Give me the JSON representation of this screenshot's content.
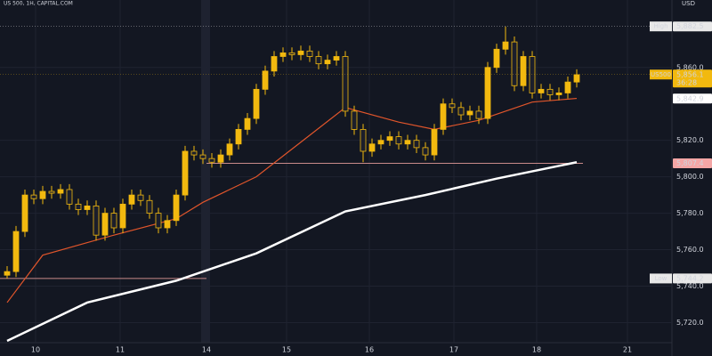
{
  "chart_data": {
    "type": "candlestick",
    "title": "US 500, 1H, CAPITAL.COM",
    "currency": "USD",
    "x": [
      0,
      1,
      2,
      3,
      4,
      5,
      6,
      7,
      8,
      9,
      10,
      11,
      12,
      13,
      14,
      15,
      16,
      17,
      18,
      19,
      20,
      21,
      22,
      23,
      24,
      25,
      26,
      27,
      28,
      29,
      30,
      31,
      32,
      33,
      34,
      35,
      36,
      37,
      38,
      39,
      40,
      41,
      42,
      43,
      44,
      45,
      46,
      47,
      48,
      49,
      50,
      51,
      52,
      53,
      54,
      55,
      56,
      57,
      58,
      59,
      60,
      61,
      62,
      63,
      64
    ],
    "open": [
      5746,
      5748,
      5770,
      5790,
      5788,
      5792,
      5791,
      5793,
      5785,
      5782,
      5784,
      5768,
      5780,
      5772,
      5785,
      5790,
      5787,
      5780,
      5772,
      5776,
      5790,
      5814,
      5812,
      5810,
      5808,
      5812,
      5818,
      5826,
      5832,
      5848,
      5858,
      5866,
      5868,
      5867,
      5869,
      5866,
      5862,
      5864,
      5866,
      5836,
      5826,
      5814,
      5818,
      5820,
      5822,
      5818,
      5820,
      5816,
      5812,
      5826,
      5840,
      5838,
      5834,
      5836,
      5832,
      5860,
      5870,
      5874,
      5850,
      5866,
      5846,
      5848,
      5845,
      5846,
      5852
    ],
    "high": [
      5751,
      5773,
      5793,
      5793,
      5795,
      5795,
      5796,
      5796,
      5788,
      5787,
      5787,
      5783,
      5783,
      5788,
      5793,
      5793,
      5790,
      5783,
      5779,
      5793,
      5817,
      5817,
      5815,
      5813,
      5815,
      5821,
      5829,
      5835,
      5851,
      5861,
      5869,
      5871,
      5871,
      5872,
      5872,
      5869,
      5867,
      5869,
      5869,
      5839,
      5829,
      5821,
      5823,
      5825,
      5825,
      5823,
      5823,
      5819,
      5829,
      5843,
      5843,
      5841,
      5839,
      5839,
      5863,
      5873,
      5882.5,
      5877,
      5869,
      5869,
      5851,
      5851,
      5849,
      5855,
      5859
    ],
    "low": [
      5744.2,
      5745,
      5767,
      5785,
      5785,
      5788,
      5788,
      5782,
      5779,
      5779,
      5765,
      5765,
      5769,
      5769,
      5782,
      5784,
      5777,
      5769,
      5769,
      5773,
      5787,
      5809,
      5807,
      5805,
      5805,
      5809,
      5815,
      5823,
      5829,
      5845,
      5855,
      5863,
      5864,
      5864,
      5863,
      5859,
      5859,
      5861,
      5833,
      5823,
      5808,
      5811,
      5815,
      5817,
      5815,
      5815,
      5813,
      5809,
      5809,
      5823,
      5835,
      5831,
      5831,
      5829,
      5829,
      5857,
      5867,
      5847,
      5847,
      5843,
      5843,
      5842,
      5842,
      5843,
      5849
    ],
    "close": [
      5748,
      5770,
      5790,
      5788,
      5792,
      5791,
      5793,
      5785,
      5782,
      5784,
      5768,
      5780,
      5772,
      5785,
      5790,
      5787,
      5780,
      5772,
      5776,
      5790,
      5814,
      5812,
      5810,
      5808,
      5812,
      5818,
      5826,
      5832,
      5848,
      5858,
      5866,
      5868,
      5867,
      5869,
      5866,
      5862,
      5864,
      5866,
      5836,
      5826,
      5814,
      5818,
      5820,
      5822,
      5818,
      5820,
      5816,
      5812,
      5826,
      5840,
      5838,
      5834,
      5836,
      5832,
      5860,
      5870,
      5874,
      5850,
      5866,
      5846,
      5848,
      5845,
      5846,
      5852,
      5856
    ],
    "up_color": "#f2b90f",
    "down_color": "#1b1e2b",
    "series": [
      {
        "color": "#e0552b",
        "x": [
          0,
          4,
          12,
          19,
          22,
          28,
          33,
          38,
          44,
          48,
          53,
          59,
          64
        ],
        "values": [
          5731,
          5757,
          5768,
          5777,
          5786,
          5800,
          5819,
          5838,
          5830,
          5826,
          5831,
          5841,
          5843
        ]
      },
      {
        "color": "#ffffff",
        "x": [
          0,
          9,
          19,
          28,
          38,
          47,
          55,
          64
        ],
        "values": [
          5710,
          5731,
          5743,
          5758,
          5781,
          5790,
          5799,
          5808
        ]
      }
    ],
    "levels": [
      {
        "value": 5807.4,
        "x": [
          22.4,
          64.7
        ],
        "color": "#c98a8a"
      },
      {
        "value": 5744.2,
        "x": [
          -0.8,
          22.4
        ],
        "color": "#c98a8a"
      }
    ],
    "price_labels": [
      {
        "name": "High",
        "value": 5882.5,
        "label": "5,882.5",
        "color": "#e8e8e8"
      },
      {
        "name": "US500",
        "value": 5856.1,
        "label": "5,856.1",
        "timer": "36:28",
        "color": "#f2b90f"
      },
      {
        "value": 5842.9,
        "label": "5,842.9",
        "color": "#ffffff"
      },
      {
        "value": 5807.4,
        "label": "5,807.4",
        "color": "#f4a6a6"
      },
      {
        "name": "Low",
        "value": 5744.2,
        "label": "5,744.2",
        "color": "#e8e8e8"
      }
    ],
    "xlim": [
      -0.8,
      74.7
    ],
    "ylim": [
      5709,
      5897
    ],
    "xticks": [
      {
        "value": 3.2,
        "label": "10"
      },
      {
        "value": 12.7,
        "label": "11"
      },
      {
        "value": 22.4,
        "label": "14"
      },
      {
        "value": 31.4,
        "label": "15"
      },
      {
        "value": 40.7,
        "label": "16"
      },
      {
        "value": 50.2,
        "label": "17"
      },
      {
        "value": 59.5,
        "label": "18"
      },
      {
        "value": 69.7,
        "label": "21"
      }
    ],
    "yticks": [
      {
        "value": 5720,
        "label": "5,720.0"
      },
      {
        "value": 5740,
        "label": "5,740.0"
      },
      {
        "value": 5760,
        "label": "5,760.0"
      },
      {
        "value": 5780,
        "label": "5,780.0"
      },
      {
        "value": 5800,
        "label": "5,800.0"
      },
      {
        "value": 5820,
        "label": "5,820.0"
      },
      {
        "value": 5860,
        "label": "5,860.0"
      }
    ],
    "grid": true
  }
}
